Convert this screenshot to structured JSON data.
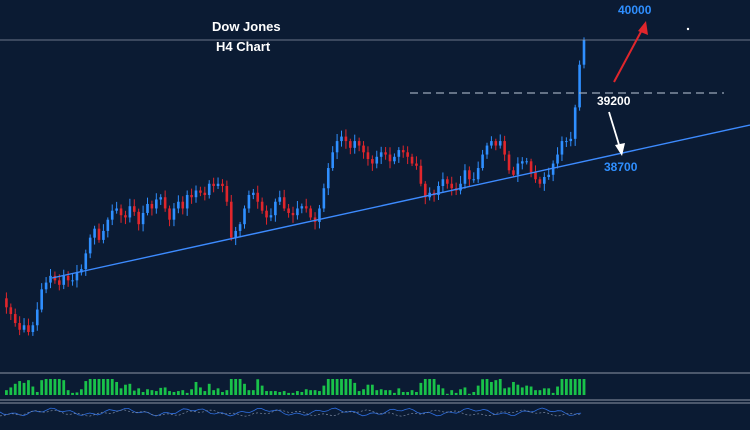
{
  "title_line1": "Dow Jones",
  "title_line2": "H4 Chart",
  "colors": {
    "background": "#0b1b33",
    "bull": "#2f8fff",
    "bear": "#e0262c",
    "trendline": "#3d8bff",
    "resistance": "#9aa6b8",
    "arrow_up": "#e0262c",
    "arrow_down": "#ffffff",
    "label_blue": "#2f8fff",
    "label_white": "#ffffff",
    "histogram": "#19c24a"
  },
  "chart_data": {
    "type": "candlestick",
    "instrument": "Dow Jones",
    "timeframe": "H4",
    "levels": [
      {
        "value": 40000,
        "label": "40000",
        "kind": "target"
      },
      {
        "value": 39200,
        "label": "39200",
        "kind": "resistance"
      },
      {
        "value": 38700,
        "label": "38700",
        "kind": "trendline-support"
      }
    ],
    "price_path": [
      37700,
      37620,
      37560,
      37480,
      37420,
      37460,
      37400,
      37460,
      37600,
      37780,
      37840,
      37900,
      37860,
      37820,
      37900,
      37860,
      37860,
      37930,
      37960,
      38100,
      38240,
      38320,
      38220,
      38300,
      38400,
      38480,
      38500,
      38440,
      38420,
      38520,
      38470,
      38360,
      38460,
      38540,
      38500,
      38580,
      38600,
      38500,
      38400,
      38500,
      38560,
      38500,
      38620,
      38600,
      38660,
      38640,
      38620,
      38720,
      38700,
      38720,
      38700,
      38560,
      38240,
      38300,
      38360,
      38500,
      38620,
      38640,
      38560,
      38480,
      38420,
      38440,
      38560,
      38600,
      38500,
      38460,
      38440,
      38500,
      38520,
      38500,
      38420,
      38380,
      38500,
      38680,
      38860,
      39000,
      39100,
      39140,
      39100,
      39040,
      39100,
      39060,
      39000,
      38940,
      38900,
      38960,
      39000,
      38980,
      38920,
      38960,
      39020,
      39000,
      38960,
      38900,
      38880,
      38720,
      38600,
      38640,
      38620,
      38700,
      38760,
      38720,
      38680,
      38660,
      38720,
      38840,
      38760,
      38760,
      38860,
      38980,
      39060,
      39100,
      39060,
      39100,
      38980,
      38840,
      38800,
      38900,
      38920,
      38920,
      38820,
      38760,
      38720,
      38780,
      38800,
      38900,
      38980,
      39100,
      39100,
      39120,
      39400,
      39780,
      40000
    ]
  }
}
